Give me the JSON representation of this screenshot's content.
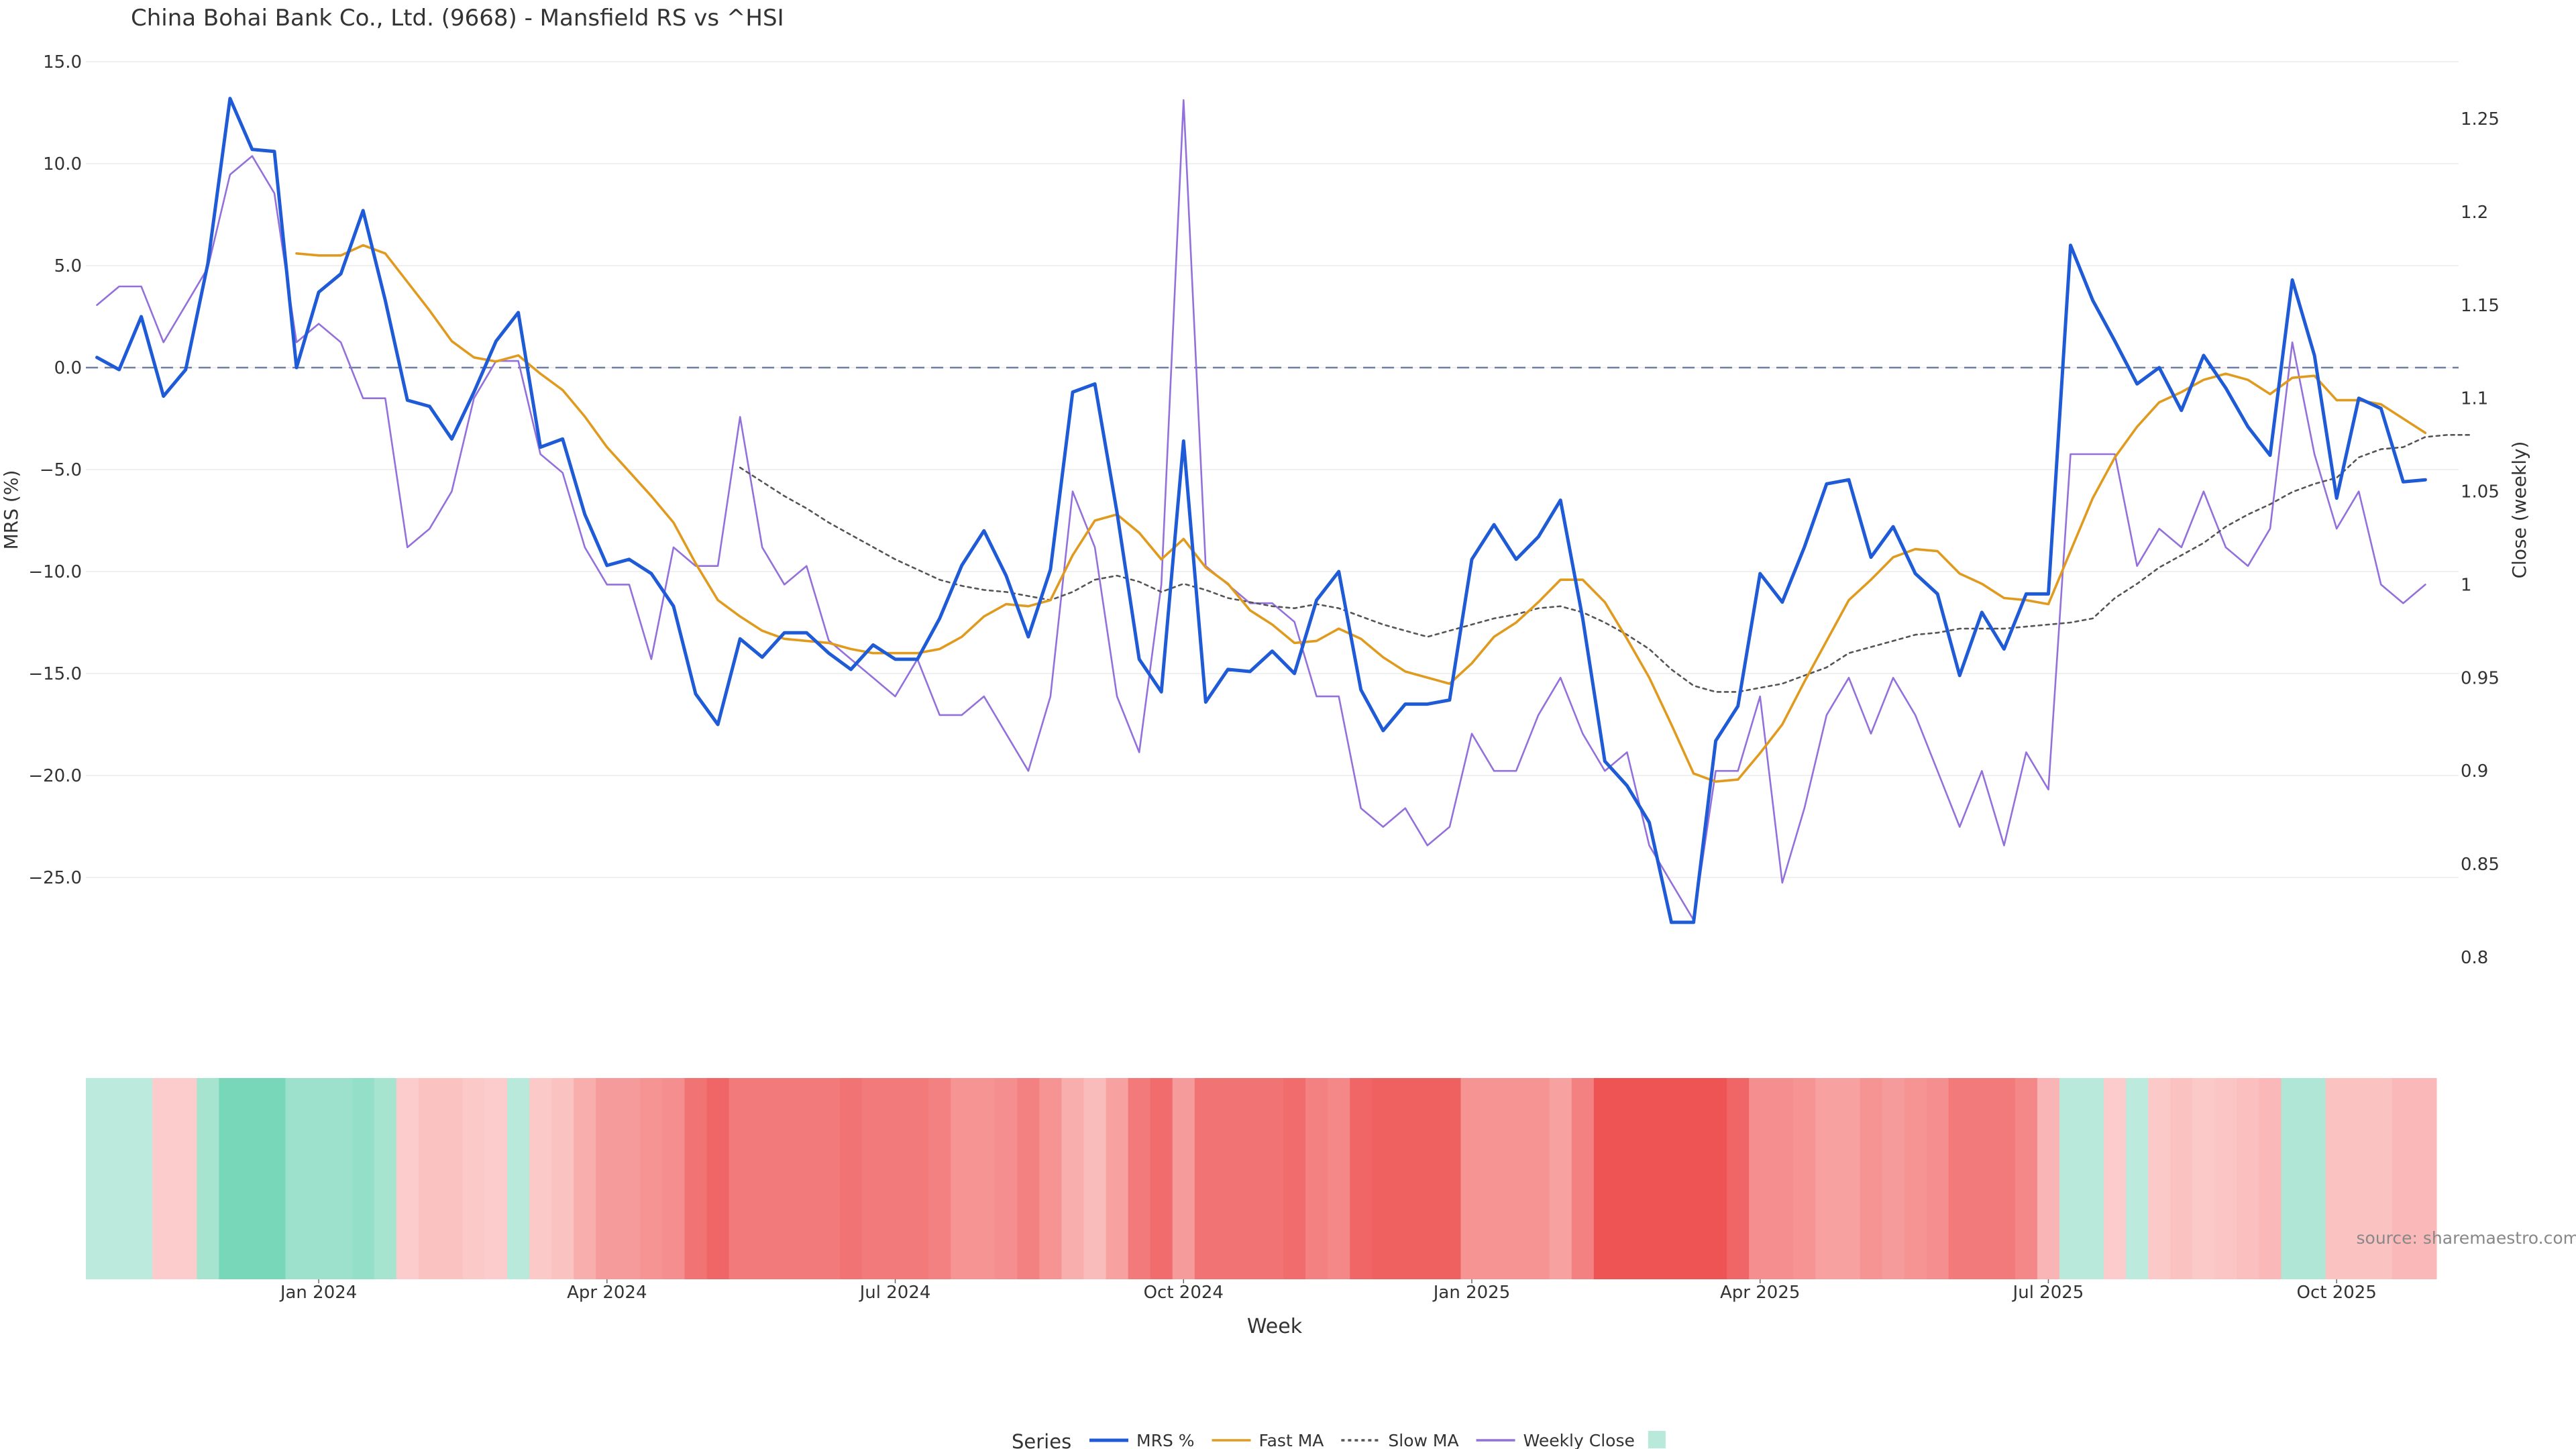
{
  "chart_data": {
    "type": "line",
    "title": "China Bohai Bank Co., Ltd. (9668) - Mansfield RS vs ^HSI",
    "xlabel": "Week",
    "ylabel_left": "MRS (%)",
    "ylabel_right": "Close (weekly)",
    "source": "source: sharemaestro.com",
    "legend_title": "Series",
    "legend_position": "bottom-center",
    "grid": true,
    "y_left": {
      "lim": [
        -30,
        15
      ],
      "ticks": [
        "15.0",
        "10.0",
        "5.0",
        "0.0",
        "−5.0",
        "−10.0",
        "−15.0",
        "−20.0",
        "−25.0"
      ],
      "tick_values": [
        15,
        10,
        5,
        0,
        -5,
        -10,
        -15,
        -20,
        -25
      ]
    },
    "y_right": {
      "lim": [
        0.78,
        1.285
      ],
      "ticks": [
        "1.25",
        "1.2",
        "1.15",
        "1.1",
        "1.05",
        "1",
        "0.95",
        "0.9",
        "0.85",
        "0.8"
      ],
      "tick_values": [
        1.25,
        1.2,
        1.15,
        1.1,
        1.05,
        1.0,
        0.95,
        0.9,
        0.85,
        0.8
      ]
    },
    "x_ticks": [
      {
        "label": "Jan 2024",
        "week": 10
      },
      {
        "label": "Apr 2024",
        "week": 23
      },
      {
        "label": "Jul 2024",
        "week": 36
      },
      {
        "label": "Oct 2024",
        "week": 49
      },
      {
        "label": "Jan 2025",
        "week": 62
      },
      {
        "label": "Apr 2025",
        "week": 75
      },
      {
        "label": "Jul 2025",
        "week": 88
      },
      {
        "label": "Oct 2025",
        "week": 101
      }
    ],
    "series": [
      {
        "name": "MRS %",
        "color": "#1f5bd6",
        "style": "solid",
        "axis": "left",
        "start": 0,
        "values": [
          0.5,
          -0.1,
          2.5,
          -1.4,
          -0.1,
          5.1,
          13.2,
          10.7,
          10.6,
          0.0,
          3.7,
          4.6,
          7.7,
          3.3,
          -1.6,
          -1.9,
          -3.5,
          -1.2,
          1.3,
          2.7,
          -3.9,
          -3.5,
          -7.2,
          -9.7,
          -9.4,
          -10.1,
          -11.7,
          -16.0,
          -17.5,
          -13.3,
          -14.2,
          -13.0,
          -13.0,
          -14.0,
          -14.8,
          -13.6,
          -14.3,
          -14.3,
          -12.3,
          -9.7,
          -8.0,
          -10.2,
          -13.2,
          -9.9,
          -1.2,
          -0.8,
          -7.1,
          -14.3,
          -15.9,
          -3.6,
          -16.4,
          -14.8,
          -14.9,
          -13.9,
          -15.0,
          -11.4,
          -10.0,
          -15.8,
          -17.8,
          -16.5,
          -16.5,
          -16.3,
          -9.4,
          -7.7,
          -9.4,
          -8.3,
          -6.5,
          -12.3,
          -19.3,
          -20.5,
          -22.3,
          -27.2,
          -27.2,
          -18.3,
          -16.6,
          -10.1,
          -11.5,
          -8.8,
          -5.7,
          -5.5,
          -9.3,
          -7.8,
          -10.1,
          -11.1,
          -15.1,
          -12.0,
          -13.8,
          -11.1,
          -11.1,
          6.0,
          3.3,
          1.3,
          -0.8,
          0.0,
          -2.1,
          0.6,
          -1.0,
          -2.9,
          -4.3,
          4.3,
          0.6,
          -6.4,
          -1.5,
          -2.0,
          -5.6,
          -5.5
        ]
      },
      {
        "name": "Fast MA",
        "color": "#e09b1f",
        "style": "solid",
        "axis": "left",
        "start": 9,
        "values": [
          5.6,
          5.5,
          5.5,
          6.0,
          5.6,
          4.2,
          2.8,
          1.3,
          0.5,
          0.3,
          0.6,
          -0.3,
          -1.1,
          -2.4,
          -3.9,
          -5.1,
          -6.3,
          -7.6,
          -9.6,
          -11.4,
          -12.2,
          -12.9,
          -13.3,
          -13.4,
          -13.5,
          -13.8,
          -14.0,
          -14.0,
          -14.0,
          -13.8,
          -13.2,
          -12.2,
          -11.6,
          -11.7,
          -11.4,
          -9.2,
          -7.5,
          -7.2,
          -8.1,
          -9.4,
          -8.4,
          -9.8,
          -10.6,
          -11.9,
          -12.6,
          -13.5,
          -13.4,
          -12.8,
          -13.3,
          -14.2,
          -14.9,
          -15.2,
          -15.5,
          -14.5,
          -13.2,
          -12.5,
          -11.5,
          -10.4,
          -10.4,
          -11.5,
          -13.3,
          -15.2,
          -17.5,
          -19.9,
          -20.3,
          -20.2,
          -18.9,
          -17.5,
          -15.4,
          -13.4,
          -11.4,
          -10.4,
          -9.3,
          -8.9,
          -9.0,
          -10.1,
          -10.6,
          -11.3,
          -11.4,
          -11.6,
          -9.0,
          -6.4,
          -4.4,
          -2.9,
          -1.7,
          -1.2,
          -0.6,
          -0.3,
          -0.6,
          -1.3,
          -0.5,
          -0.4,
          -1.6,
          -1.6,
          -1.8,
          -2.5,
          -3.2
        ]
      },
      {
        "name": "Slow MA",
        "color": "#555555",
        "style": "dotted",
        "axis": "left",
        "start": 29,
        "values": [
          -4.9,
          -5.6,
          -6.3,
          -6.9,
          -7.6,
          -8.2,
          -8.8,
          -9.4,
          -9.9,
          -10.4,
          -10.7,
          -10.9,
          -11.0,
          -11.2,
          -11.4,
          -11.0,
          -10.4,
          -10.2,
          -10.5,
          -11.0,
          -10.6,
          -10.9,
          -11.3,
          -11.5,
          -11.7,
          -11.8,
          -11.6,
          -11.8,
          -12.2,
          -12.6,
          -12.9,
          -13.2,
          -12.9,
          -12.6,
          -12.3,
          -12.1,
          -11.8,
          -11.7,
          -12.0,
          -12.5,
          -13.1,
          -13.8,
          -14.8,
          -15.6,
          -15.9,
          -15.9,
          -15.7,
          -15.5,
          -15.1,
          -14.7,
          -14.0,
          -13.7,
          -13.4,
          -13.1,
          -13.0,
          -12.8,
          -12.8,
          -12.8,
          -12.7,
          -12.6,
          -12.5,
          -12.3,
          -11.3,
          -10.6,
          -9.8,
          -9.2,
          -8.6,
          -7.8,
          -7.2,
          -6.7,
          -6.1,
          -5.7,
          -5.4,
          -4.4,
          -4.0,
          -3.9,
          -3.4,
          -3.3,
          -3.3
        ]
      },
      {
        "name": "Weekly Close",
        "color": "#9370db",
        "style": "solid",
        "axis": "right",
        "start": 0,
        "values": [
          1.15,
          1.16,
          1.16,
          1.13,
          1.15,
          1.17,
          1.22,
          1.23,
          1.21,
          1.13,
          1.14,
          1.13,
          1.1,
          1.1,
          1.02,
          1.03,
          1.05,
          1.1,
          1.12,
          1.12,
          1.07,
          1.06,
          1.02,
          1.0,
          1.0,
          0.96,
          1.02,
          1.01,
          1.01,
          1.09,
          1.02,
          1.0,
          1.01,
          0.97,
          0.96,
          0.95,
          0.94,
          0.96,
          0.93,
          0.93,
          0.94,
          0.92,
          0.9,
          0.94,
          1.05,
          1.02,
          0.94,
          0.91,
          1.0,
          1.26,
          1.01,
          1.0,
          0.99,
          0.99,
          0.98,
          0.94,
          0.94,
          0.88,
          0.87,
          0.88,
          0.86,
          0.87,
          0.92,
          0.9,
          0.9,
          0.93,
          0.95,
          0.92,
          0.9,
          0.91,
          0.86,
          0.84,
          0.82,
          0.9,
          0.9,
          0.94,
          0.84,
          0.88,
          0.93,
          0.95,
          0.92,
          0.95,
          0.93,
          0.9,
          0.87,
          0.9,
          0.86,
          0.91,
          0.89,
          1.07,
          1.07,
          1.07,
          1.01,
          1.03,
          1.02,
          1.05,
          1.02,
          1.01,
          1.03,
          1.13,
          1.07,
          1.03,
          1.05,
          1.0,
          0.99,
          1.0
        ]
      }
    ],
    "heatmap": {
      "label": "",
      "note": "weekly MRS regime shading; values in MRS %",
      "values": [
        1.5,
        1.5,
        1.5,
        -1.5,
        -1.5,
        4.0,
        9.0,
        9.0,
        9.0,
        5.0,
        5.0,
        5.0,
        6.0,
        4.0,
        -1.5,
        -3.0,
        -3.0,
        -2.0,
        -1.5,
        2.0,
        -2.0,
        -3.0,
        -6.0,
        -9.0,
        -9.0,
        -10.0,
        -11.0,
        -15.0,
        -17.0,
        -14.0,
        -14.0,
        -14.0,
        -14.0,
        -14.0,
        -15.0,
        -14.0,
        -14.0,
        -14.0,
        -13.0,
        -10.0,
        -10.0,
        -11.0,
        -13.0,
        -10.0,
        -6.0,
        -4.0,
        -8.0,
        -14.0,
        -16.0,
        -9.0,
        -15.0,
        -15.0,
        -15.0,
        -15.0,
        -16.0,
        -13.0,
        -12.0,
        -17.0,
        -18.0,
        -18.0,
        -18.0,
        -18.0,
        -10.0,
        -10.0,
        -10.0,
        -10.0,
        -8.0,
        -13.0,
        -20.0,
        -20.0,
        -20.0,
        -20.0,
        -20.0,
        -20.0,
        -17.0,
        -11.0,
        -11.0,
        -10.0,
        -8.0,
        -8.0,
        -10.0,
        -9.0,
        -10.0,
        -11.0,
        -14.0,
        -14.0,
        -14.0,
        -12.0,
        -5.0,
        2.0,
        2.0,
        -1.5,
        1.5,
        -2.0,
        -3.0,
        -2.0,
        -2.5,
        -3.5,
        -4.5,
        3.0,
        3.0,
        -3.0,
        -3.0,
        -3.0,
        -4.5,
        -4.5
      ]
    }
  }
}
